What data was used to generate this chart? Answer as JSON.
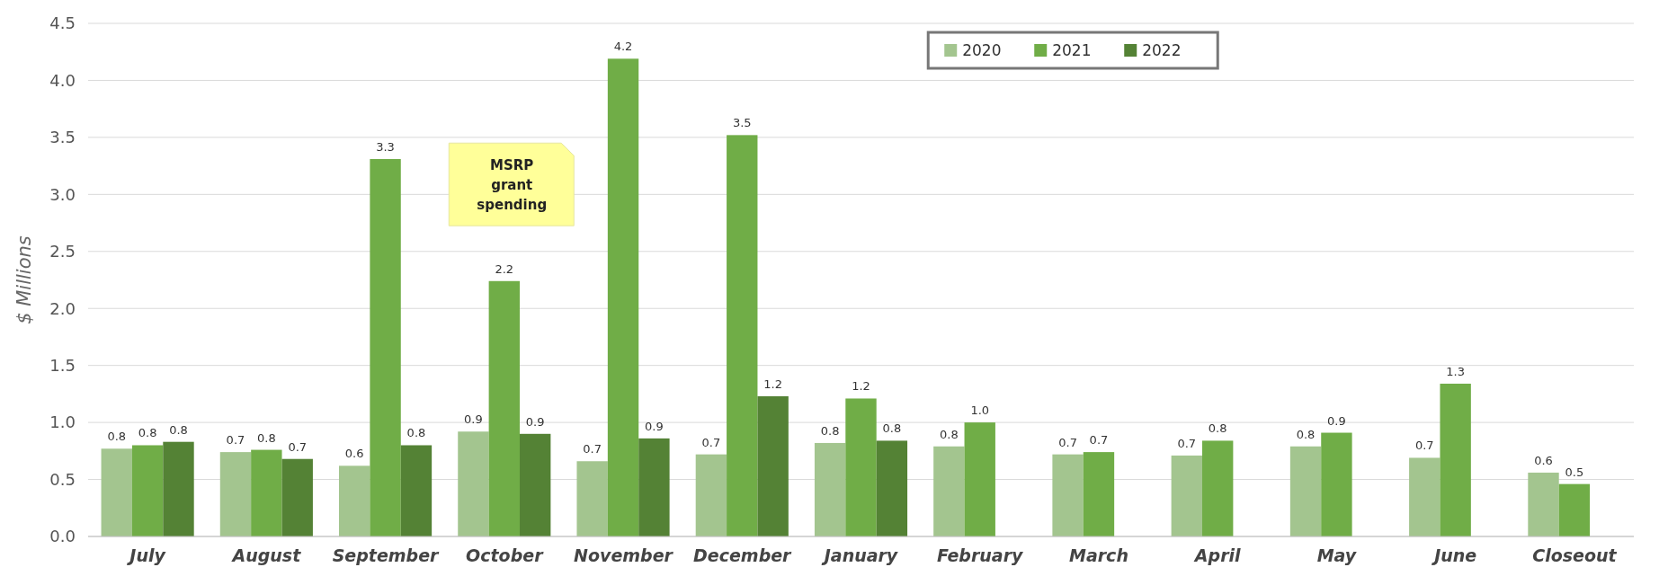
{
  "chart_data": {
    "type": "bar",
    "ylabel": "$ Millions",
    "categories": [
      "July",
      "August",
      "September",
      "October",
      "November",
      "December",
      "January",
      "February",
      "March",
      "April",
      "May",
      "June",
      "Closeout"
    ],
    "series": [
      {
        "name": "2020",
        "color": "#a3c58f",
        "values": [
          0.77,
          0.74,
          0.62,
          0.92,
          0.66,
          0.72,
          0.82,
          0.79,
          0.72,
          0.71,
          0.79,
          0.69,
          0.56
        ],
        "value_labels": [
          "0.8",
          "0.7",
          "0.6",
          "0.9",
          "0.7",
          "0.7",
          "0.8",
          "0.8",
          "0.7",
          "0.7",
          "0.8",
          "0.7",
          "0.6"
        ]
      },
      {
        "name": "2021",
        "color": "#70ad47",
        "values": [
          0.8,
          0.76,
          3.31,
          2.24,
          4.19,
          3.52,
          1.21,
          1.0,
          0.74,
          0.84,
          0.91,
          1.34,
          0.46
        ],
        "value_labels": [
          "0.8",
          "0.8",
          "3.3",
          "2.2",
          "4.2",
          "3.5",
          "1.2",
          "1.0",
          "0.7",
          "0.8",
          "0.9",
          "1.3",
          "0.5"
        ]
      },
      {
        "name": "2022",
        "color": "#548235",
        "values": [
          0.83,
          0.68,
          0.8,
          0.9,
          0.86,
          1.23,
          0.84,
          null,
          null,
          null,
          null,
          null,
          null
        ],
        "value_labels": [
          "0.8",
          "0.7",
          "0.8",
          "0.9",
          "0.9",
          "1.2",
          "0.8",
          null,
          null,
          null,
          null,
          null,
          null
        ]
      }
    ],
    "ylim": [
      0,
      4.5
    ],
    "yticks": [
      {
        "value": 0,
        "label": "0.0"
      },
      {
        "value": 0.5,
        "label": "0.5"
      },
      {
        "value": 1,
        "label": "1.0"
      },
      {
        "value": 1.5,
        "label": "1.5"
      },
      {
        "value": 2,
        "label": "2.0"
      },
      {
        "value": 2.5,
        "label": "2.5"
      },
      {
        "value": 3,
        "label": "3.0"
      },
      {
        "value": 3.5,
        "label": "3.5"
      },
      {
        "value": 4,
        "label": "4.0"
      },
      {
        "value": 4.5,
        "label": "4.5"
      }
    ],
    "grid": "y",
    "legend": "top right",
    "annotations": [
      "MSRP grant spending"
    ]
  }
}
